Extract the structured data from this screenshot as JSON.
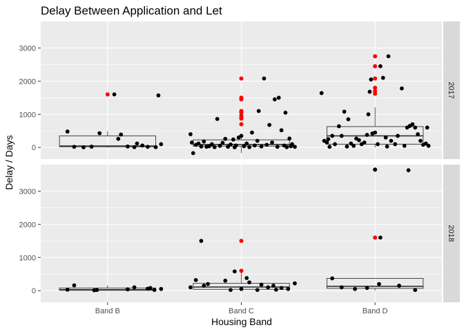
{
  "chart_data": {
    "type": "boxplot-jitter",
    "title": "Delay Between Application and Let",
    "xlabel": "Housing Band",
    "ylabel": "Delay / Days",
    "categories": [
      "Band B",
      "Band C",
      "Band D"
    ],
    "y_ticks": [
      0,
      1000,
      2000,
      3000
    ],
    "ylim": [
      -350,
      3800
    ],
    "grid": true,
    "facet": "rows",
    "colors": {
      "panel_bg": "#ebebeb",
      "grid": "#ffffff",
      "strip_bg": "#d9d9d9",
      "point": "#000000",
      "outlier": "#ff0000"
    },
    "panels": [
      {
        "strip_label": "2017",
        "boxes": [
          {
            "category": "Band B",
            "q1": 20,
            "median": 45,
            "q3": 350,
            "whisker_low": 0,
            "whisker_high": 490
          },
          {
            "category": "Band C",
            "q1": 40,
            "median": 90,
            "q3": 230,
            "whisker_low": -170,
            "whisker_high": 420
          },
          {
            "category": "Band D",
            "q1": 100,
            "median": 350,
            "q3": 630,
            "whisker_low": 0,
            "whisker_high": 1210
          }
        ],
        "outliers": [
          {
            "category": "Band B",
            "y": 1600
          },
          {
            "category": "Band C",
            "y": 2080
          },
          {
            "category": "Band C",
            "y": 1500
          },
          {
            "category": "Band C",
            "y": 1450
          },
          {
            "category": "Band C",
            "y": 1100
          },
          {
            "category": "Band C",
            "y": 1050
          },
          {
            "category": "Band C",
            "y": 960
          },
          {
            "category": "Band C",
            "y": 900
          },
          {
            "category": "Band C",
            "y": 870
          },
          {
            "category": "Band C",
            "y": 700
          },
          {
            "category": "Band D",
            "y": 2750
          },
          {
            "category": "Band D",
            "y": 2450
          },
          {
            "category": "Band D",
            "y": 2080
          },
          {
            "category": "Band D",
            "y": 1800
          },
          {
            "category": "Band D",
            "y": 1700
          },
          {
            "category": "Band D",
            "y": 1620
          }
        ],
        "points": [
          {
            "category": "Band B",
            "dx": -0.3,
            "y": 480
          },
          {
            "category": "Band B",
            "dx": -0.25,
            "y": 20
          },
          {
            "category": "Band B",
            "dx": -0.18,
            "y": 5
          },
          {
            "category": "Band B",
            "dx": -0.12,
            "y": 25
          },
          {
            "category": "Band B",
            "dx": -0.06,
            "y": 430
          },
          {
            "category": "Band B",
            "dx": 0.05,
            "y": 1600
          },
          {
            "category": "Band B",
            "dx": 0.08,
            "y": 260
          },
          {
            "category": "Band B",
            "dx": 0.1,
            "y": 390
          },
          {
            "category": "Band B",
            "dx": 0.15,
            "y": 30
          },
          {
            "category": "Band B",
            "dx": 0.2,
            "y": 10
          },
          {
            "category": "Band B",
            "dx": 0.22,
            "y": 120
          },
          {
            "category": "Band B",
            "dx": 0.26,
            "y": 60
          },
          {
            "category": "Band B",
            "dx": 0.3,
            "y": 20
          },
          {
            "category": "Band B",
            "dx": 0.36,
            "y": 10
          },
          {
            "category": "Band B",
            "dx": 0.38,
            "y": 1570
          },
          {
            "category": "Band B",
            "dx": 0.4,
            "y": 100
          },
          {
            "category": "Band C",
            "dx": -0.38,
            "y": 400
          },
          {
            "category": "Band C",
            "dx": -0.37,
            "y": 150
          },
          {
            "category": "Band C",
            "dx": -0.36,
            "y": -170
          },
          {
            "category": "Band C",
            "dx": -0.34,
            "y": 80
          },
          {
            "category": "Band C",
            "dx": -0.32,
            "y": 120
          },
          {
            "category": "Band C",
            "dx": -0.3,
            "y": 30
          },
          {
            "category": "Band C",
            "dx": -0.28,
            "y": 180
          },
          {
            "category": "Band C",
            "dx": -0.26,
            "y": 20
          },
          {
            "category": "Band C",
            "dx": -0.24,
            "y": 40
          },
          {
            "category": "Band C",
            "dx": -0.22,
            "y": 100
          },
          {
            "category": "Band C",
            "dx": -0.2,
            "y": 10
          },
          {
            "category": "Band C",
            "dx": -0.18,
            "y": 860
          },
          {
            "category": "Band C",
            "dx": -0.16,
            "y": 50
          },
          {
            "category": "Band C",
            "dx": -0.14,
            "y": 140
          },
          {
            "category": "Band C",
            "dx": -0.12,
            "y": 260
          },
          {
            "category": "Band C",
            "dx": -0.1,
            "y": 20
          },
          {
            "category": "Band C",
            "dx": -0.08,
            "y": 90
          },
          {
            "category": "Band C",
            "dx": -0.06,
            "y": 240
          },
          {
            "category": "Band C",
            "dx": -0.05,
            "y": 5
          },
          {
            "category": "Band C",
            "dx": -0.04,
            "y": 60
          },
          {
            "category": "Band C",
            "dx": -0.02,
            "y": 300
          },
          {
            "category": "Band C",
            "dx": 0.0,
            "y": 350
          },
          {
            "category": "Band C",
            "dx": 0.02,
            "y": 40
          },
          {
            "category": "Band C",
            "dx": 0.04,
            "y": 120
          },
          {
            "category": "Band C",
            "dx": 0.06,
            "y": 10
          },
          {
            "category": "Band C",
            "dx": 0.08,
            "y": 450
          },
          {
            "category": "Band C",
            "dx": 0.1,
            "y": 60
          },
          {
            "category": "Band C",
            "dx": 0.12,
            "y": 200
          },
          {
            "category": "Band C",
            "dx": 0.13,
            "y": 1100
          },
          {
            "category": "Band C",
            "dx": 0.15,
            "y": 30
          },
          {
            "category": "Band C",
            "dx": 0.17,
            "y": 2080
          },
          {
            "category": "Band C",
            "dx": 0.19,
            "y": 80
          },
          {
            "category": "Band C",
            "dx": 0.21,
            "y": 680
          },
          {
            "category": "Band C",
            "dx": 0.23,
            "y": 150
          },
          {
            "category": "Band C",
            "dx": 0.25,
            "y": 1450
          },
          {
            "category": "Band C",
            "dx": 0.27,
            "y": 20
          },
          {
            "category": "Band C",
            "dx": 0.28,
            "y": 1500
          },
          {
            "category": "Band C",
            "dx": 0.3,
            "y": 520
          },
          {
            "category": "Band C",
            "dx": 0.32,
            "y": 60
          },
          {
            "category": "Band C",
            "dx": 0.33,
            "y": 1050
          },
          {
            "category": "Band C",
            "dx": 0.34,
            "y": 10
          },
          {
            "category": "Band C",
            "dx": 0.36,
            "y": 270
          },
          {
            "category": "Band C",
            "dx": 0.37,
            "y": 40
          },
          {
            "category": "Band C",
            "dx": 0.38,
            "y": 100
          },
          {
            "category": "Band C",
            "dx": 0.4,
            "y": 20
          },
          {
            "category": "Band D",
            "dx": -0.4,
            "y": 1640
          },
          {
            "category": "Band D",
            "dx": -0.38,
            "y": 200
          },
          {
            "category": "Band D",
            "dx": -0.36,
            "y": 150
          },
          {
            "category": "Band D",
            "dx": -0.35,
            "y": 250
          },
          {
            "category": "Band D",
            "dx": -0.34,
            "y": 20
          },
          {
            "category": "Band D",
            "dx": -0.32,
            "y": 350
          },
          {
            "category": "Band D",
            "dx": -0.3,
            "y": 100
          },
          {
            "category": "Band D",
            "dx": -0.27,
            "y": 640
          },
          {
            "category": "Band D",
            "dx": -0.25,
            "y": 350
          },
          {
            "category": "Band D",
            "dx": -0.23,
            "y": 1080
          },
          {
            "category": "Band D",
            "dx": -0.21,
            "y": 30
          },
          {
            "category": "Band D",
            "dx": -0.2,
            "y": 850
          },
          {
            "category": "Band D",
            "dx": -0.18,
            "y": 120
          },
          {
            "category": "Band D",
            "dx": -0.16,
            "y": 50
          },
          {
            "category": "Band D",
            "dx": -0.14,
            "y": 270
          },
          {
            "category": "Band D",
            "dx": -0.12,
            "y": 220
          },
          {
            "category": "Band D",
            "dx": -0.1,
            "y": 100
          },
          {
            "category": "Band D",
            "dx": -0.08,
            "y": 150
          },
          {
            "category": "Band D",
            "dx": -0.06,
            "y": 380
          },
          {
            "category": "Band D",
            "dx": -0.05,
            "y": 1000
          },
          {
            "category": "Band D",
            "dx": -0.04,
            "y": 1680
          },
          {
            "category": "Band D",
            "dx": -0.03,
            "y": 2050
          },
          {
            "category": "Band D",
            "dx": -0.02,
            "y": 420
          },
          {
            "category": "Band D",
            "dx": 0.0,
            "y": 450
          },
          {
            "category": "Band D",
            "dx": 0.02,
            "y": 100
          },
          {
            "category": "Band D",
            "dx": 0.04,
            "y": 2450
          },
          {
            "category": "Band D",
            "dx": 0.06,
            "y": 2100
          },
          {
            "category": "Band D",
            "dx": 0.08,
            "y": 300
          },
          {
            "category": "Band D",
            "dx": 0.09,
            "y": 30
          },
          {
            "category": "Band D",
            "dx": 0.1,
            "y": 2750
          },
          {
            "category": "Band D",
            "dx": 0.12,
            "y": 200
          },
          {
            "category": "Band D",
            "dx": 0.15,
            "y": 100
          },
          {
            "category": "Band D",
            "dx": 0.17,
            "y": 350
          },
          {
            "category": "Band D",
            "dx": 0.2,
            "y": 1780
          },
          {
            "category": "Band D",
            "dx": 0.22,
            "y": 50
          },
          {
            "category": "Band D",
            "dx": 0.24,
            "y": 600
          },
          {
            "category": "Band D",
            "dx": 0.26,
            "y": 650
          },
          {
            "category": "Band D",
            "dx": 0.28,
            "y": 700
          },
          {
            "category": "Band D",
            "dx": 0.3,
            "y": 600
          },
          {
            "category": "Band D",
            "dx": 0.32,
            "y": 400
          },
          {
            "category": "Band D",
            "dx": 0.34,
            "y": 200
          },
          {
            "category": "Band D",
            "dx": 0.36,
            "y": 80
          },
          {
            "category": "Band D",
            "dx": 0.38,
            "y": 120
          },
          {
            "category": "Band D",
            "dx": 0.39,
            "y": 600
          },
          {
            "category": "Band D",
            "dx": 0.4,
            "y": 50
          }
        ]
      },
      {
        "strip_label": "2018",
        "boxes": [
          {
            "category": "Band B",
            "q1": 10,
            "median": 30,
            "q3": 80,
            "whisker_low": 0,
            "whisker_high": 160
          },
          {
            "category": "Band C",
            "q1": 40,
            "median": 110,
            "q3": 220,
            "whisker_low": 0,
            "whisker_high": 600
          },
          {
            "category": "Band D",
            "q1": 70,
            "median": 130,
            "q3": 370,
            "whisker_low": 0,
            "whisker_high": 370
          }
        ],
        "outliers": [
          {
            "category": "Band C",
            "y": 1500
          },
          {
            "category": "Band C",
            "y": 600
          },
          {
            "category": "Band D",
            "y": 3650
          },
          {
            "category": "Band D",
            "y": 1600
          }
        ],
        "points": [
          {
            "category": "Band B",
            "dx": -0.3,
            "y": 30
          },
          {
            "category": "Band B",
            "dx": -0.25,
            "y": 160
          },
          {
            "category": "Band B",
            "dx": -0.1,
            "y": 10
          },
          {
            "category": "Band B",
            "dx": -0.08,
            "y": 20
          },
          {
            "category": "Band B",
            "dx": 0.15,
            "y": 40
          },
          {
            "category": "Band B",
            "dx": 0.2,
            "y": 100
          },
          {
            "category": "Band B",
            "dx": 0.3,
            "y": 60
          },
          {
            "category": "Band B",
            "dx": 0.32,
            "y": 80
          },
          {
            "category": "Band B",
            "dx": 0.35,
            "y": 20
          },
          {
            "category": "Band B",
            "dx": 0.4,
            "y": 50
          },
          {
            "category": "Band C",
            "dx": -0.38,
            "y": 100
          },
          {
            "category": "Band C",
            "dx": -0.34,
            "y": 320
          },
          {
            "category": "Band C",
            "dx": -0.3,
            "y": 1500
          },
          {
            "category": "Band C",
            "dx": -0.28,
            "y": 150
          },
          {
            "category": "Band C",
            "dx": -0.25,
            "y": 200
          },
          {
            "category": "Band C",
            "dx": -0.12,
            "y": 300
          },
          {
            "category": "Band C",
            "dx": -0.08,
            "y": 20
          },
          {
            "category": "Band C",
            "dx": -0.05,
            "y": 580
          },
          {
            "category": "Band C",
            "dx": 0.0,
            "y": 50
          },
          {
            "category": "Band C",
            "dx": 0.04,
            "y": 380
          },
          {
            "category": "Band C",
            "dx": 0.06,
            "y": 250
          },
          {
            "category": "Band C",
            "dx": 0.12,
            "y": 20
          },
          {
            "category": "Band C",
            "dx": 0.15,
            "y": 180
          },
          {
            "category": "Band C",
            "dx": 0.2,
            "y": 100
          },
          {
            "category": "Band C",
            "dx": 0.24,
            "y": 150
          },
          {
            "category": "Band C",
            "dx": 0.26,
            "y": 30
          },
          {
            "category": "Band C",
            "dx": 0.3,
            "y": 80
          },
          {
            "category": "Band C",
            "dx": 0.35,
            "y": 50
          },
          {
            "category": "Band C",
            "dx": 0.4,
            "y": 220
          },
          {
            "category": "Band D",
            "dx": -0.32,
            "y": 370
          },
          {
            "category": "Band D",
            "dx": -0.25,
            "y": 100
          },
          {
            "category": "Band D",
            "dx": -0.15,
            "y": 50
          },
          {
            "category": "Band D",
            "dx": -0.06,
            "y": 80
          },
          {
            "category": "Band D",
            "dx": 0.0,
            "y": 3650
          },
          {
            "category": "Band D",
            "dx": 0.03,
            "y": 200
          },
          {
            "category": "Band D",
            "dx": 0.04,
            "y": 1600
          },
          {
            "category": "Band D",
            "dx": 0.18,
            "y": 150
          },
          {
            "category": "Band D",
            "dx": 0.25,
            "y": 3630
          },
          {
            "category": "Band D",
            "dx": 0.3,
            "y": 20
          }
        ]
      }
    ]
  }
}
